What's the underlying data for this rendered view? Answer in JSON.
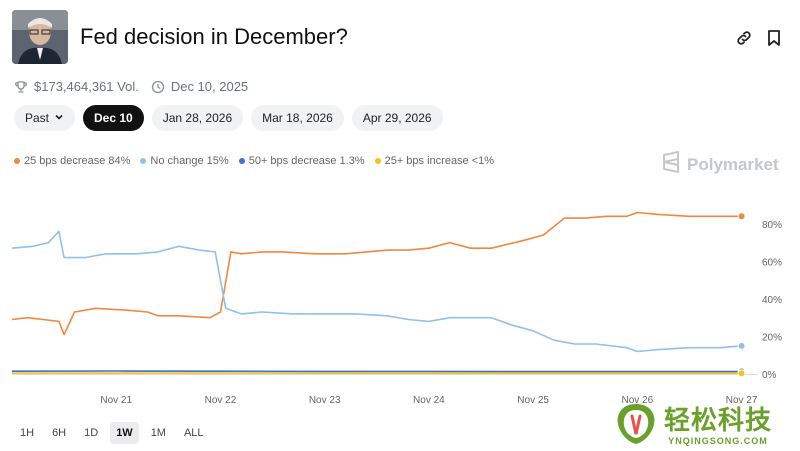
{
  "header": {
    "title": "Fed decision in December?",
    "volume": "$173,464,361 Vol.",
    "date": "Dec 10, 2025"
  },
  "date_pills": [
    {
      "label": "Past",
      "active": false,
      "dropdown": true
    },
    {
      "label": "Dec 10",
      "active": true
    },
    {
      "label": "Jan 28, 2026",
      "active": false
    },
    {
      "label": "Mar 18, 2026",
      "active": false
    },
    {
      "label": "Apr 29, 2026",
      "active": false
    }
  ],
  "legend": [
    {
      "label": "25 bps decrease 84%",
      "color": "#f0883e"
    },
    {
      "label": "No change 15%",
      "color": "#8ec1ee"
    },
    {
      "label": "50+ bps decrease 1.3%",
      "color": "#3f6fd8"
    },
    {
      "label": "25+ bps increase <1%",
      "color": "#f4c419"
    }
  ],
  "brand": "Polymarket",
  "time_ranges": [
    {
      "label": "1H",
      "active": false
    },
    {
      "label": "6H",
      "active": false
    },
    {
      "label": "1D",
      "active": false
    },
    {
      "label": "1W",
      "active": true
    },
    {
      "label": "1M",
      "active": false
    },
    {
      "label": "ALL",
      "active": false
    }
  ],
  "watermark": {
    "cn": "轻松科技",
    "en": "YNQINGSONG.COM"
  },
  "chart_data": {
    "type": "line",
    "x_unit": "days since Nov 20, 2025 00:00",
    "xlim": [
      0,
      7.1
    ],
    "ylim": [
      0,
      90
    ],
    "ytick_labels": [
      "80%",
      "60%",
      "40%",
      "20%",
      "0%"
    ],
    "ytick_values": [
      80,
      60,
      40,
      20,
      0
    ],
    "xtick_labels": [
      "Nov 21",
      "Nov 22",
      "Nov 23",
      "Nov 24",
      "Nov 25",
      "Nov 26",
      "Nov 27"
    ],
    "xtick_values": [
      1,
      2,
      3,
      4,
      5,
      6,
      7
    ],
    "series": [
      {
        "name": "25 bps decrease",
        "color": "#f0883e",
        "points": [
          [
            0,
            29
          ],
          [
            0.15,
            30
          ],
          [
            0.3,
            29
          ],
          [
            0.45,
            28
          ],
          [
            0.5,
            21
          ],
          [
            0.6,
            33
          ],
          [
            0.8,
            35
          ],
          [
            1.1,
            34
          ],
          [
            1.3,
            33
          ],
          [
            1.4,
            31
          ],
          [
            1.6,
            31
          ],
          [
            1.9,
            30
          ],
          [
            2.0,
            33
          ],
          [
            2.1,
            65
          ],
          [
            2.2,
            64
          ],
          [
            2.4,
            65
          ],
          [
            2.6,
            65
          ],
          [
            2.9,
            64
          ],
          [
            3.2,
            64
          ],
          [
            3.4,
            65
          ],
          [
            3.6,
            66
          ],
          [
            3.8,
            66
          ],
          [
            4.0,
            67
          ],
          [
            4.2,
            70
          ],
          [
            4.4,
            67
          ],
          [
            4.6,
            67
          ],
          [
            4.9,
            71
          ],
          [
            5.1,
            74
          ],
          [
            5.3,
            83
          ],
          [
            5.5,
            83
          ],
          [
            5.7,
            84
          ],
          [
            5.9,
            84
          ],
          [
            6.0,
            86
          ],
          [
            6.2,
            85
          ],
          [
            6.5,
            84
          ],
          [
            6.8,
            84
          ],
          [
            7.0,
            84
          ]
        ]
      },
      {
        "name": "No change",
        "color": "#8ec1ee",
        "points": [
          [
            0,
            67
          ],
          [
            0.2,
            68
          ],
          [
            0.35,
            70
          ],
          [
            0.45,
            76
          ],
          [
            0.5,
            62
          ],
          [
            0.7,
            62
          ],
          [
            0.9,
            64
          ],
          [
            1.2,
            64
          ],
          [
            1.4,
            65
          ],
          [
            1.6,
            68
          ],
          [
            1.8,
            66
          ],
          [
            1.95,
            65
          ],
          [
            2.05,
            35
          ],
          [
            2.2,
            32
          ],
          [
            2.4,
            33
          ],
          [
            2.7,
            32
          ],
          [
            3.0,
            32
          ],
          [
            3.3,
            32
          ],
          [
            3.6,
            31
          ],
          [
            3.8,
            29
          ],
          [
            4.0,
            28
          ],
          [
            4.2,
            30
          ],
          [
            4.4,
            30
          ],
          [
            4.6,
            30
          ],
          [
            4.8,
            26
          ],
          [
            5.0,
            23
          ],
          [
            5.2,
            18
          ],
          [
            5.4,
            16
          ],
          [
            5.6,
            16
          ],
          [
            5.9,
            14
          ],
          [
            6.0,
            12
          ],
          [
            6.2,
            13
          ],
          [
            6.5,
            14
          ],
          [
            6.8,
            14
          ],
          [
            7.0,
            15
          ]
        ]
      },
      {
        "name": "50+ bps decrease",
        "color": "#3f6fd8",
        "points": [
          [
            0,
            1.5
          ],
          [
            1,
            1.6
          ],
          [
            2,
            1.5
          ],
          [
            3,
            1.4
          ],
          [
            4,
            1.4
          ],
          [
            5,
            1.3
          ],
          [
            6,
            1.3
          ],
          [
            7,
            1.3
          ]
        ]
      },
      {
        "name": "25+ bps increase",
        "color": "#f4c419",
        "points": [
          [
            0,
            0.5
          ],
          [
            2,
            0.5
          ],
          [
            4,
            0.4
          ],
          [
            6,
            0.4
          ],
          [
            7,
            0.4
          ]
        ]
      }
    ]
  }
}
